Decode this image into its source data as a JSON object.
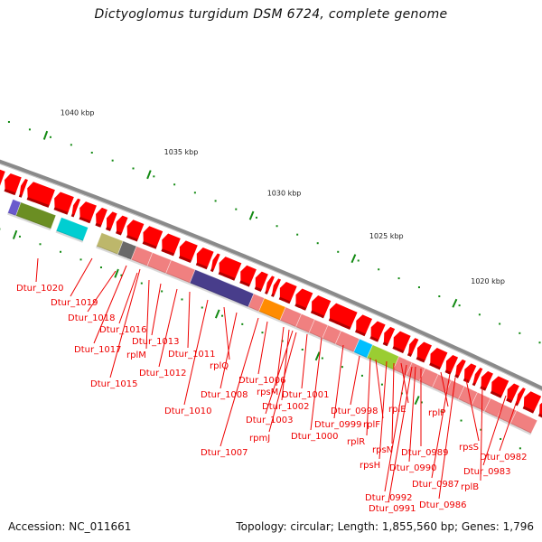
{
  "title": "Dictyoglomus turgidum DSM 6724, complete genome",
  "footer": {
    "accession": "Accession: NC_011661",
    "summary": "Topology: circular; Length: 1,855,560 bp; Genes: 1,796"
  },
  "colors": {
    "backbone": "#8a8a8a",
    "cds": "#ff0000",
    "cog_default": "#f08080",
    "tick": "#138a13",
    "label": "#ee0000"
  },
  "ruler": {
    "unit": "kbp",
    "major_ticks": [
      "1040 kbp",
      "1035 kbp",
      "1030 kbp",
      "1025 kbp",
      "1020 kbp"
    ]
  },
  "cog_blocks": [
    {
      "color": "#6a5acd",
      "label": "slate-blue"
    },
    {
      "color": "#6b8e23",
      "label": "olive-green"
    },
    {
      "color": "#00ced1",
      "label": "cyan"
    },
    {
      "color": "#bdb76b",
      "label": "khaki"
    },
    {
      "color": "#696969",
      "label": "gray"
    },
    {
      "color": "#483d8b",
      "label": "dark-slate-blue"
    },
    {
      "color": "#ff8c00",
      "label": "orange"
    },
    {
      "color": "#00bfff",
      "label": "sky-blue"
    },
    {
      "color": "#9acd32",
      "label": "yellow-green"
    }
  ],
  "gene_labels": [
    "Dtur_1020",
    "Dtur_1019",
    "Dtur_1018",
    "Dtur_1016",
    "Dtur_1017",
    "Dtur_1013",
    "rplM",
    "Dtur_1015",
    "Dtur_1011",
    "Dtur_1012",
    "rplQ",
    "Dtur_1010",
    "Dtur_1008",
    "Dtur_1006",
    "rpsM",
    "Dtur_1001",
    "Dtur_1002",
    "Dtur_1003",
    "rpmJ",
    "Dtur_1007",
    "Dtur_1000",
    "Dtur_0998",
    "Dtur_0999",
    "rplF",
    "rplR",
    "rplE",
    "rpsN",
    "rpsH",
    "rplP",
    "Dtur_0989",
    "Dtur_0990",
    "Dtur_0992",
    "Dtur_0991",
    "rpsS",
    "Dtur_0987",
    "Dtur_0986",
    "Dtur_0982",
    "Dtur_0983",
    "rplB"
  ]
}
